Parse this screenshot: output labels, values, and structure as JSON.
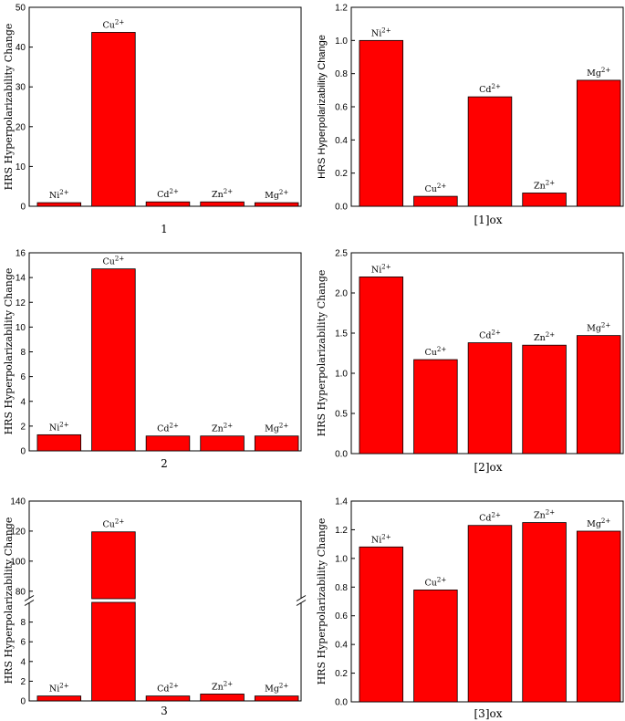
{
  "chart_data": [
    {
      "type": "bar",
      "title": "1",
      "ylabel": "HRS Hyperpolarizability Change",
      "categories": [
        "Ni2+",
        "Cu2+",
        "Cd2+",
        "Zn2+",
        "Mg2+"
      ],
      "values": [
        0.9,
        43.7,
        1.1,
        1.1,
        0.9
      ],
      "ylim": [
        0,
        50
      ],
      "yticks": [
        0,
        10,
        20,
        30,
        40,
        50
      ],
      "bar_color": "#ff0000"
    },
    {
      "type": "bar",
      "title": "[1]ox",
      "ylabel": "HRS Hyperpolarizability Change",
      "categories": [
        "Ni2+",
        "Cu2+",
        "Cd2+",
        "Zn2+",
        "Mg2+"
      ],
      "values": [
        1.0,
        0.06,
        0.66,
        0.08,
        0.76
      ],
      "ylim": [
        0,
        1.2
      ],
      "yticks": [
        0.0,
        0.2,
        0.4,
        0.6,
        0.8,
        1.0,
        1.2
      ],
      "bar_color": "#ff0000"
    },
    {
      "type": "bar",
      "title": "2",
      "ylabel": "HRS Hyperpolarizability Change",
      "categories": [
        "Ni2+",
        "Cu2+",
        "Cd2+",
        "Zn2+",
        "Mg2+"
      ],
      "values": [
        1.3,
        14.7,
        1.2,
        1.2,
        1.2
      ],
      "ylim": [
        0,
        16
      ],
      "yticks": [
        0,
        2,
        4,
        6,
        8,
        10,
        12,
        14,
        16
      ],
      "bar_color": "#ff0000"
    },
    {
      "type": "bar",
      "title": "[2]ox",
      "ylabel": "HRS Hyperpolarizability Change",
      "categories": [
        "Ni2+",
        "Cu2+",
        "Cd2+",
        "Zn2+",
        "Mg2+"
      ],
      "values": [
        2.2,
        1.17,
        1.38,
        1.35,
        1.47
      ],
      "ylim": [
        0,
        2.5
      ],
      "yticks": [
        0.0,
        0.5,
        1.0,
        1.5,
        2.0,
        2.5
      ],
      "bar_color": "#ff0000"
    },
    {
      "type": "bar",
      "title": "3",
      "ylabel": "HRS Hyperpolarizability Change",
      "categories": [
        "Ni2+",
        "Cu2+",
        "Cd2+",
        "Zn2+",
        "Mg2+"
      ],
      "values": [
        0.5,
        119.5,
        0.5,
        0.7,
        0.5
      ],
      "broken_axis": {
        "lower": [
          0,
          10
        ],
        "upper": [
          75,
          140
        ]
      },
      "yticks_lower": [
        0,
        2,
        4,
        6,
        8
      ],
      "yticks_upper": [
        80,
        100,
        120,
        140
      ],
      "bar_color": "#ff0000"
    },
    {
      "type": "bar",
      "title": "[3]ox",
      "ylabel": "HRS Hyperpolarizability Change",
      "categories": [
        "Ni2+",
        "Cu2+",
        "Cd2+",
        "Zn2+",
        "Mg2+"
      ],
      "values": [
        1.08,
        0.78,
        1.23,
        1.25,
        1.19
      ],
      "ylim": [
        0,
        1.4
      ],
      "yticks": [
        0.0,
        0.2,
        0.4,
        0.6,
        0.8,
        1.0,
        1.2,
        1.4
      ],
      "bar_color": "#ff0000"
    }
  ]
}
